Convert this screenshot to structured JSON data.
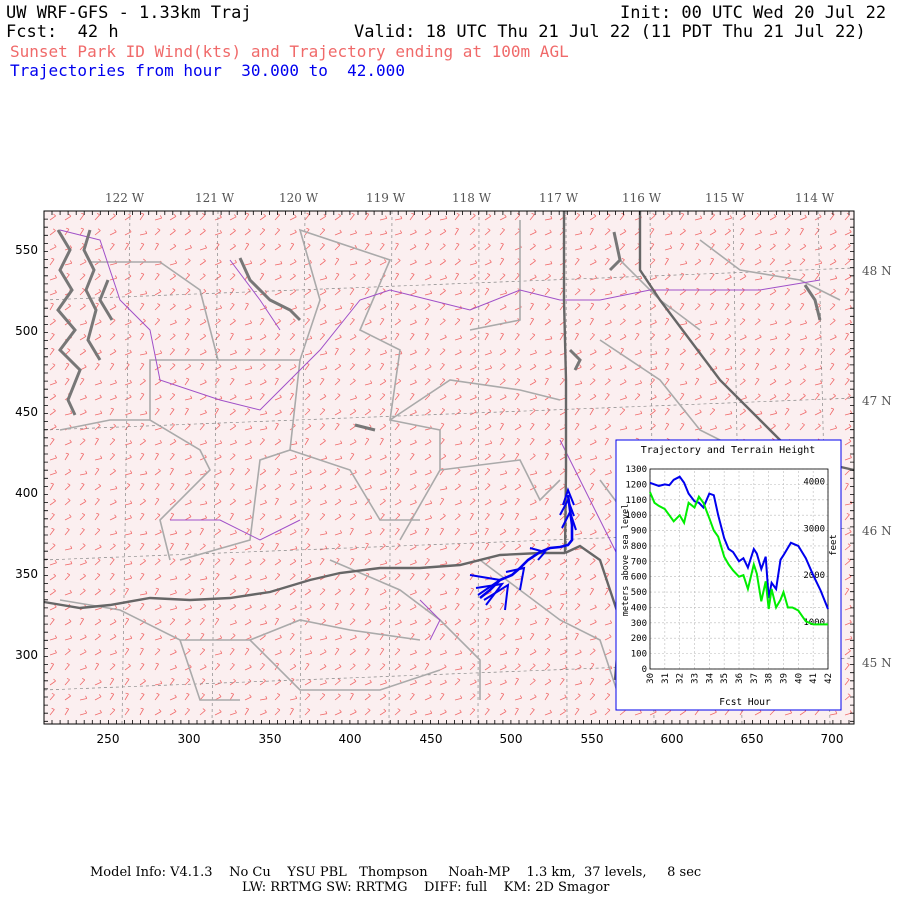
{
  "header": {
    "model_title": "UW WRF-GFS - 1.33km Traj",
    "init": "Init: 00 UTC Wed 20 Jul 22",
    "fcst": "Fcst:  42 h",
    "valid": "Valid: 18 UTC Thu 21 Jul 22 (11 PDT Thu 21 Jul 22)",
    "field_title": "Sunset Park ID Wind(kts) and Trajectory ending at 100m AGL",
    "traj_label": "Trajectories from hour  30.000 to  42.000"
  },
  "map": {
    "lon_labels": [
      "122 W",
      "121 W",
      "120 W",
      "119 W",
      "118 W",
      "117 W",
      "116 W",
      "115 W",
      "114 W"
    ],
    "lat_labels": [
      "48 N",
      "47 N",
      "46 N",
      "45 N"
    ],
    "x_ticks": [
      "250",
      "300",
      "350",
      "400",
      "450",
      "500",
      "550",
      "600",
      "650",
      "700"
    ],
    "y_ticks": [
      "550",
      "500",
      "450",
      "400",
      "350",
      "300"
    ],
    "colors": {
      "wind_barb": "#f06a6a",
      "state_border": "#666666",
      "county_border": "#aaaaaa",
      "river": "#a050c8",
      "trajectory": "#0000ee"
    }
  },
  "inset": {
    "title": "Trajectory and Terrain Height",
    "ylabel_left": "meters above sea level",
    "ylabel_right": "feet",
    "xlabel": "Fcst Hour",
    "colors": {
      "trajectory": "#0000ee",
      "terrain": "#00ee00"
    }
  },
  "chart_data": {
    "type": "line",
    "title": "Trajectory and Terrain Height",
    "xlabel": "Fcst Hour",
    "ylabel": "meters above sea level",
    "y2label": "feet",
    "xlim": [
      30,
      42
    ],
    "ylim": [
      0,
      1300
    ],
    "x_ticks": [
      "30",
      "31",
      "32",
      "33",
      "34",
      "35",
      "36",
      "37",
      "38",
      "39",
      "40",
      "41",
      "42"
    ],
    "y_ticks": [
      "0",
      "100",
      "200",
      "300",
      "400",
      "500",
      "600",
      "700",
      "800",
      "900",
      "1000",
      "1100",
      "1200",
      "1300"
    ],
    "y2_ticks": [
      "1000",
      "2000",
      "3000",
      "4000"
    ],
    "grid": true,
    "series": [
      {
        "color": "#0000ee",
        "x": [
          30,
          30.3,
          30.6,
          31,
          31.3,
          31.6,
          32,
          32.3,
          32.6,
          33,
          33.3,
          33.6,
          34,
          34.3,
          34.6,
          35,
          35.3,
          35.6,
          36,
          36.3,
          36.6,
          37,
          37.2,
          37.5,
          37.8,
          38,
          38.2,
          38.5,
          38.8,
          39,
          39.5,
          40,
          40.5,
          41,
          41.5,
          42
        ],
        "y": [
          1210,
          1200,
          1190,
          1200,
          1195,
          1230,
          1250,
          1210,
          1140,
          1090,
          1080,
          1050,
          1140,
          1130,
          1000,
          850,
          780,
          760,
          700,
          720,
          660,
          780,
          750,
          650,
          730,
          460,
          560,
          520,
          710,
          740,
          820,
          800,
          720,
          610,
          510,
          390
        ]
      },
      {
        "color": "#00ee00",
        "x": [
          30,
          30.3,
          30.6,
          31,
          31.3,
          31.6,
          32,
          32.3,
          32.6,
          33,
          33.3,
          33.6,
          34,
          34.3,
          34.6,
          35,
          35.3,
          35.6,
          36,
          36.3,
          36.6,
          37,
          37.2,
          37.5,
          37.8,
          38,
          38.2,
          38.5,
          38.8,
          39,
          39.3,
          39.6,
          40,
          40.5,
          41,
          41.5,
          42
        ],
        "y": [
          1150,
          1080,
          1060,
          1040,
          1000,
          960,
          1000,
          950,
          1080,
          1050,
          1120,
          1080,
          980,
          900,
          860,
          730,
          680,
          640,
          600,
          610,
          520,
          680,
          620,
          440,
          570,
          390,
          520,
          400,
          450,
          500,
          400,
          400,
          380,
          310,
          290,
          290,
          290
        ]
      }
    ]
  },
  "footer": {
    "line1": "Model Info: V4.1.3    No Cu    YSU PBL   Thompson     Noah-MP    1.3 km,  37 levels,     8 sec",
    "line2": "LW: RRTMG SW: RRTMG    DIFF: full    KM: 2D Smagor"
  }
}
